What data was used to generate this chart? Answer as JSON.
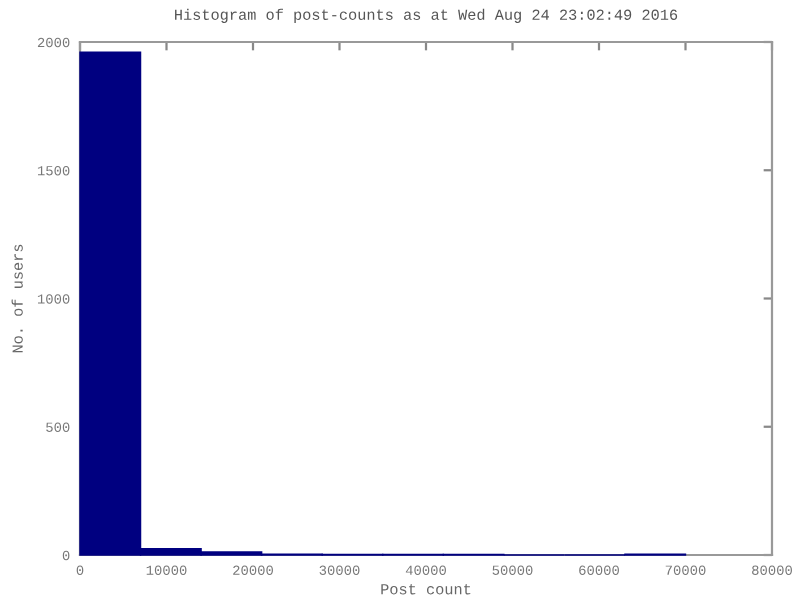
{
  "chart_data": {
    "type": "histogram",
    "title": "Histogram of post-counts as at Wed Aug 24 23:02:49 2016",
    "xlabel": "Post count",
    "ylabel": "No. of users",
    "bins": [
      0,
      7000,
      14000,
      21000,
      28000,
      35000,
      42000,
      49000,
      56000,
      63000,
      70000
    ],
    "values": [
      1960,
      25,
      12,
      3,
      2,
      2,
      2,
      0,
      0,
      3
    ],
    "color": "#000080",
    "xlim": [
      0,
      80000
    ],
    "xticks": [
      0,
      10000,
      20000,
      30000,
      40000,
      50000,
      60000,
      70000,
      80000
    ],
    "ylim": [
      0,
      2000
    ],
    "yticks": [
      0,
      500,
      1000,
      1500,
      2000
    ],
    "grid": false
  }
}
